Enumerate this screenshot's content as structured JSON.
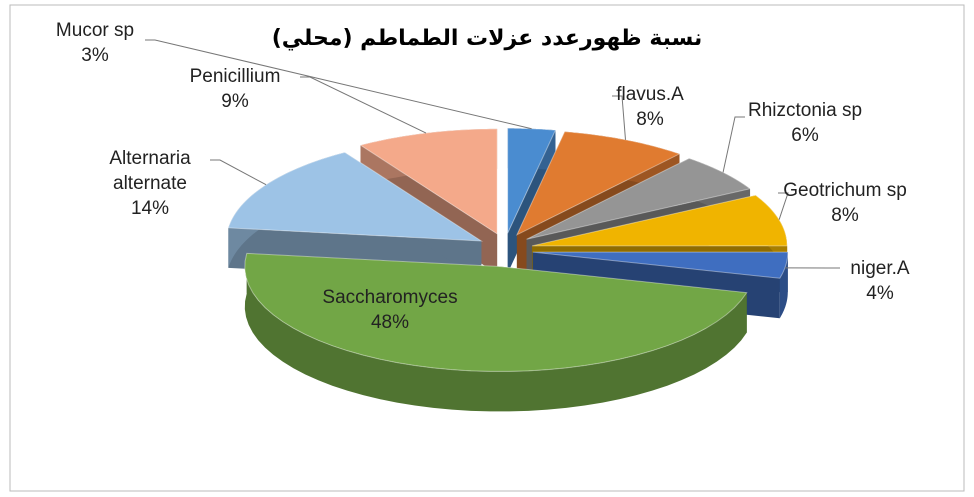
{
  "chart_data": {
    "type": "pie3d",
    "title": "نسبة ظهورعدد عزلات الطماطم (محلي)",
    "categories": [
      "Mucor sp",
      "flavus.A",
      "Rhizctonia sp",
      "Geotrichum sp",
      "niger.A",
      "Saccharomyces",
      "Alternaria alternate",
      "Penicillium"
    ],
    "values": [
      3,
      8,
      6,
      8,
      4,
      48,
      14,
      9
    ],
    "value_labels": [
      "3%",
      "8%",
      "6%",
      "8%",
      "4%",
      "48%",
      "14%",
      "9%"
    ],
    "colors": [
      "#4a8cd0",
      "#e07b30",
      "#959595",
      "#f0b400",
      "#3f6ec0",
      "#72a646",
      "#9dc3e6",
      "#f4a98a"
    ]
  }
}
